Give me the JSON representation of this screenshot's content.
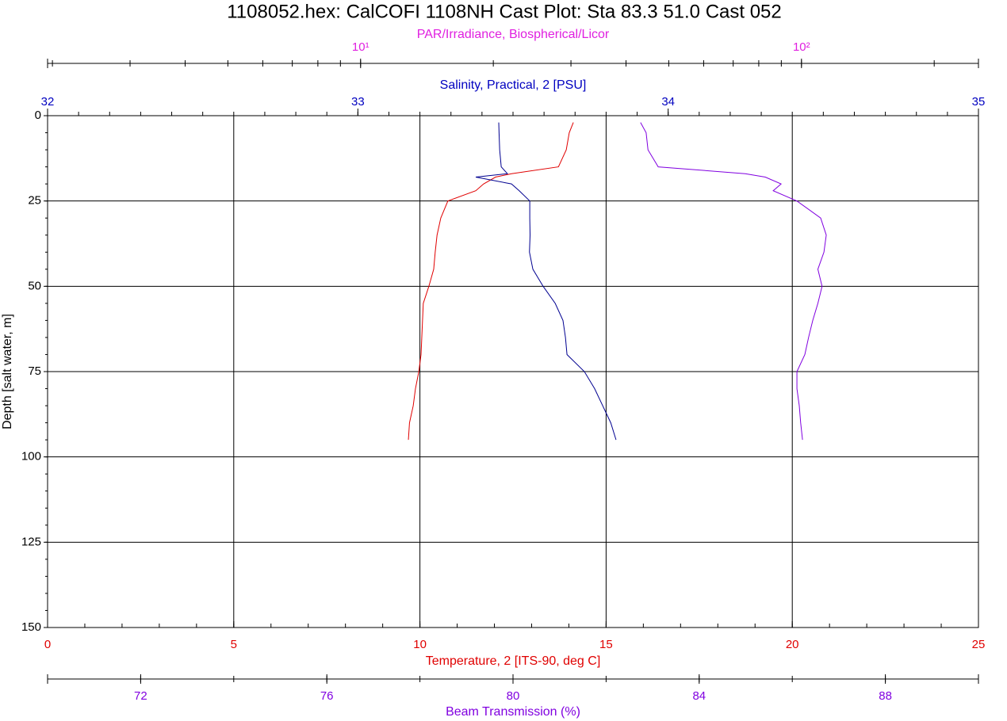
{
  "chart_data": {
    "type": "line",
    "title": "1108052.hex: CalCOFI 1108NH Cast Plot: Sta 83.3  51.0  Cast 052",
    "y_label": "Depth [salt water, m]",
    "ylim": [
      0,
      150
    ],
    "yticks": [
      0,
      25,
      50,
      75,
      100,
      125,
      150
    ],
    "y_minor_step": 5,
    "y_inverted": true,
    "grid": true,
    "y": [
      2,
      5,
      10,
      15,
      17,
      18,
      20,
      22,
      25,
      30,
      35,
      40,
      45,
      50,
      55,
      60,
      65,
      70,
      75,
      80,
      85,
      90,
      95
    ],
    "x_axes": [
      {
        "label": "Temperature, 2 [ITS-90, deg C]",
        "color": "#e00000",
        "xlim": [
          0,
          25
        ],
        "xticks": [
          0,
          5,
          10,
          15,
          20,
          25
        ],
        "minor_step": 1,
        "log": false
      },
      {
        "label": "Salinity, Practical, 2 [PSU]",
        "color": "#0000c0",
        "xlim": [
          32,
          35
        ],
        "xticks": [
          32,
          33,
          34,
          35
        ],
        "minor_step": 0.1,
        "log": false
      },
      {
        "label": "PAR/Irradiance, Biospherical/Licor",
        "color": "#e020e0",
        "xlim": [
          1.95,
          252
        ],
        "xticks": [
          {
            "value": 10,
            "label": "10¹"
          },
          {
            "value": 100,
            "label": "10²"
          }
        ],
        "log": true
      },
      {
        "label": "Beam Transmission (%)",
        "color": "#8000e0",
        "xlim": [
          70,
          90
        ],
        "xticks": [
          72,
          76,
          80,
          84,
          88
        ],
        "minor_step": 2,
        "log": false
      }
    ],
    "series": [
      {
        "axis": 0,
        "color": "#e00000",
        "values": [
          14.12,
          14.01,
          13.93,
          13.72,
          12.46,
          12.03,
          11.71,
          11.5,
          10.75,
          10.56,
          10.46,
          10.41,
          10.37,
          10.24,
          10.09,
          10.07,
          10.05,
          10.03,
          9.97,
          9.88,
          9.82,
          9.72,
          9.69
        ]
      },
      {
        "axis": 1,
        "color": "#000090",
        "values": [
          33.454,
          33.455,
          33.457,
          33.462,
          33.482,
          33.38,
          33.495,
          33.52,
          33.554,
          33.554,
          33.555,
          33.553,
          33.564,
          33.597,
          33.636,
          33.661,
          33.669,
          33.674,
          33.73,
          33.763,
          33.789,
          33.815,
          33.832
        ]
      },
      {
        "axis": 3,
        "color": "#8000e0",
        "values": [
          82.74,
          82.86,
          82.9,
          83.12,
          84.99,
          85.42,
          85.76,
          85.59,
          86.1,
          86.61,
          86.73,
          86.68,
          86.55,
          86.64,
          86.55,
          86.44,
          86.35,
          86.27,
          86.1,
          86.1,
          86.15,
          86.18,
          86.22
        ]
      }
    ]
  }
}
